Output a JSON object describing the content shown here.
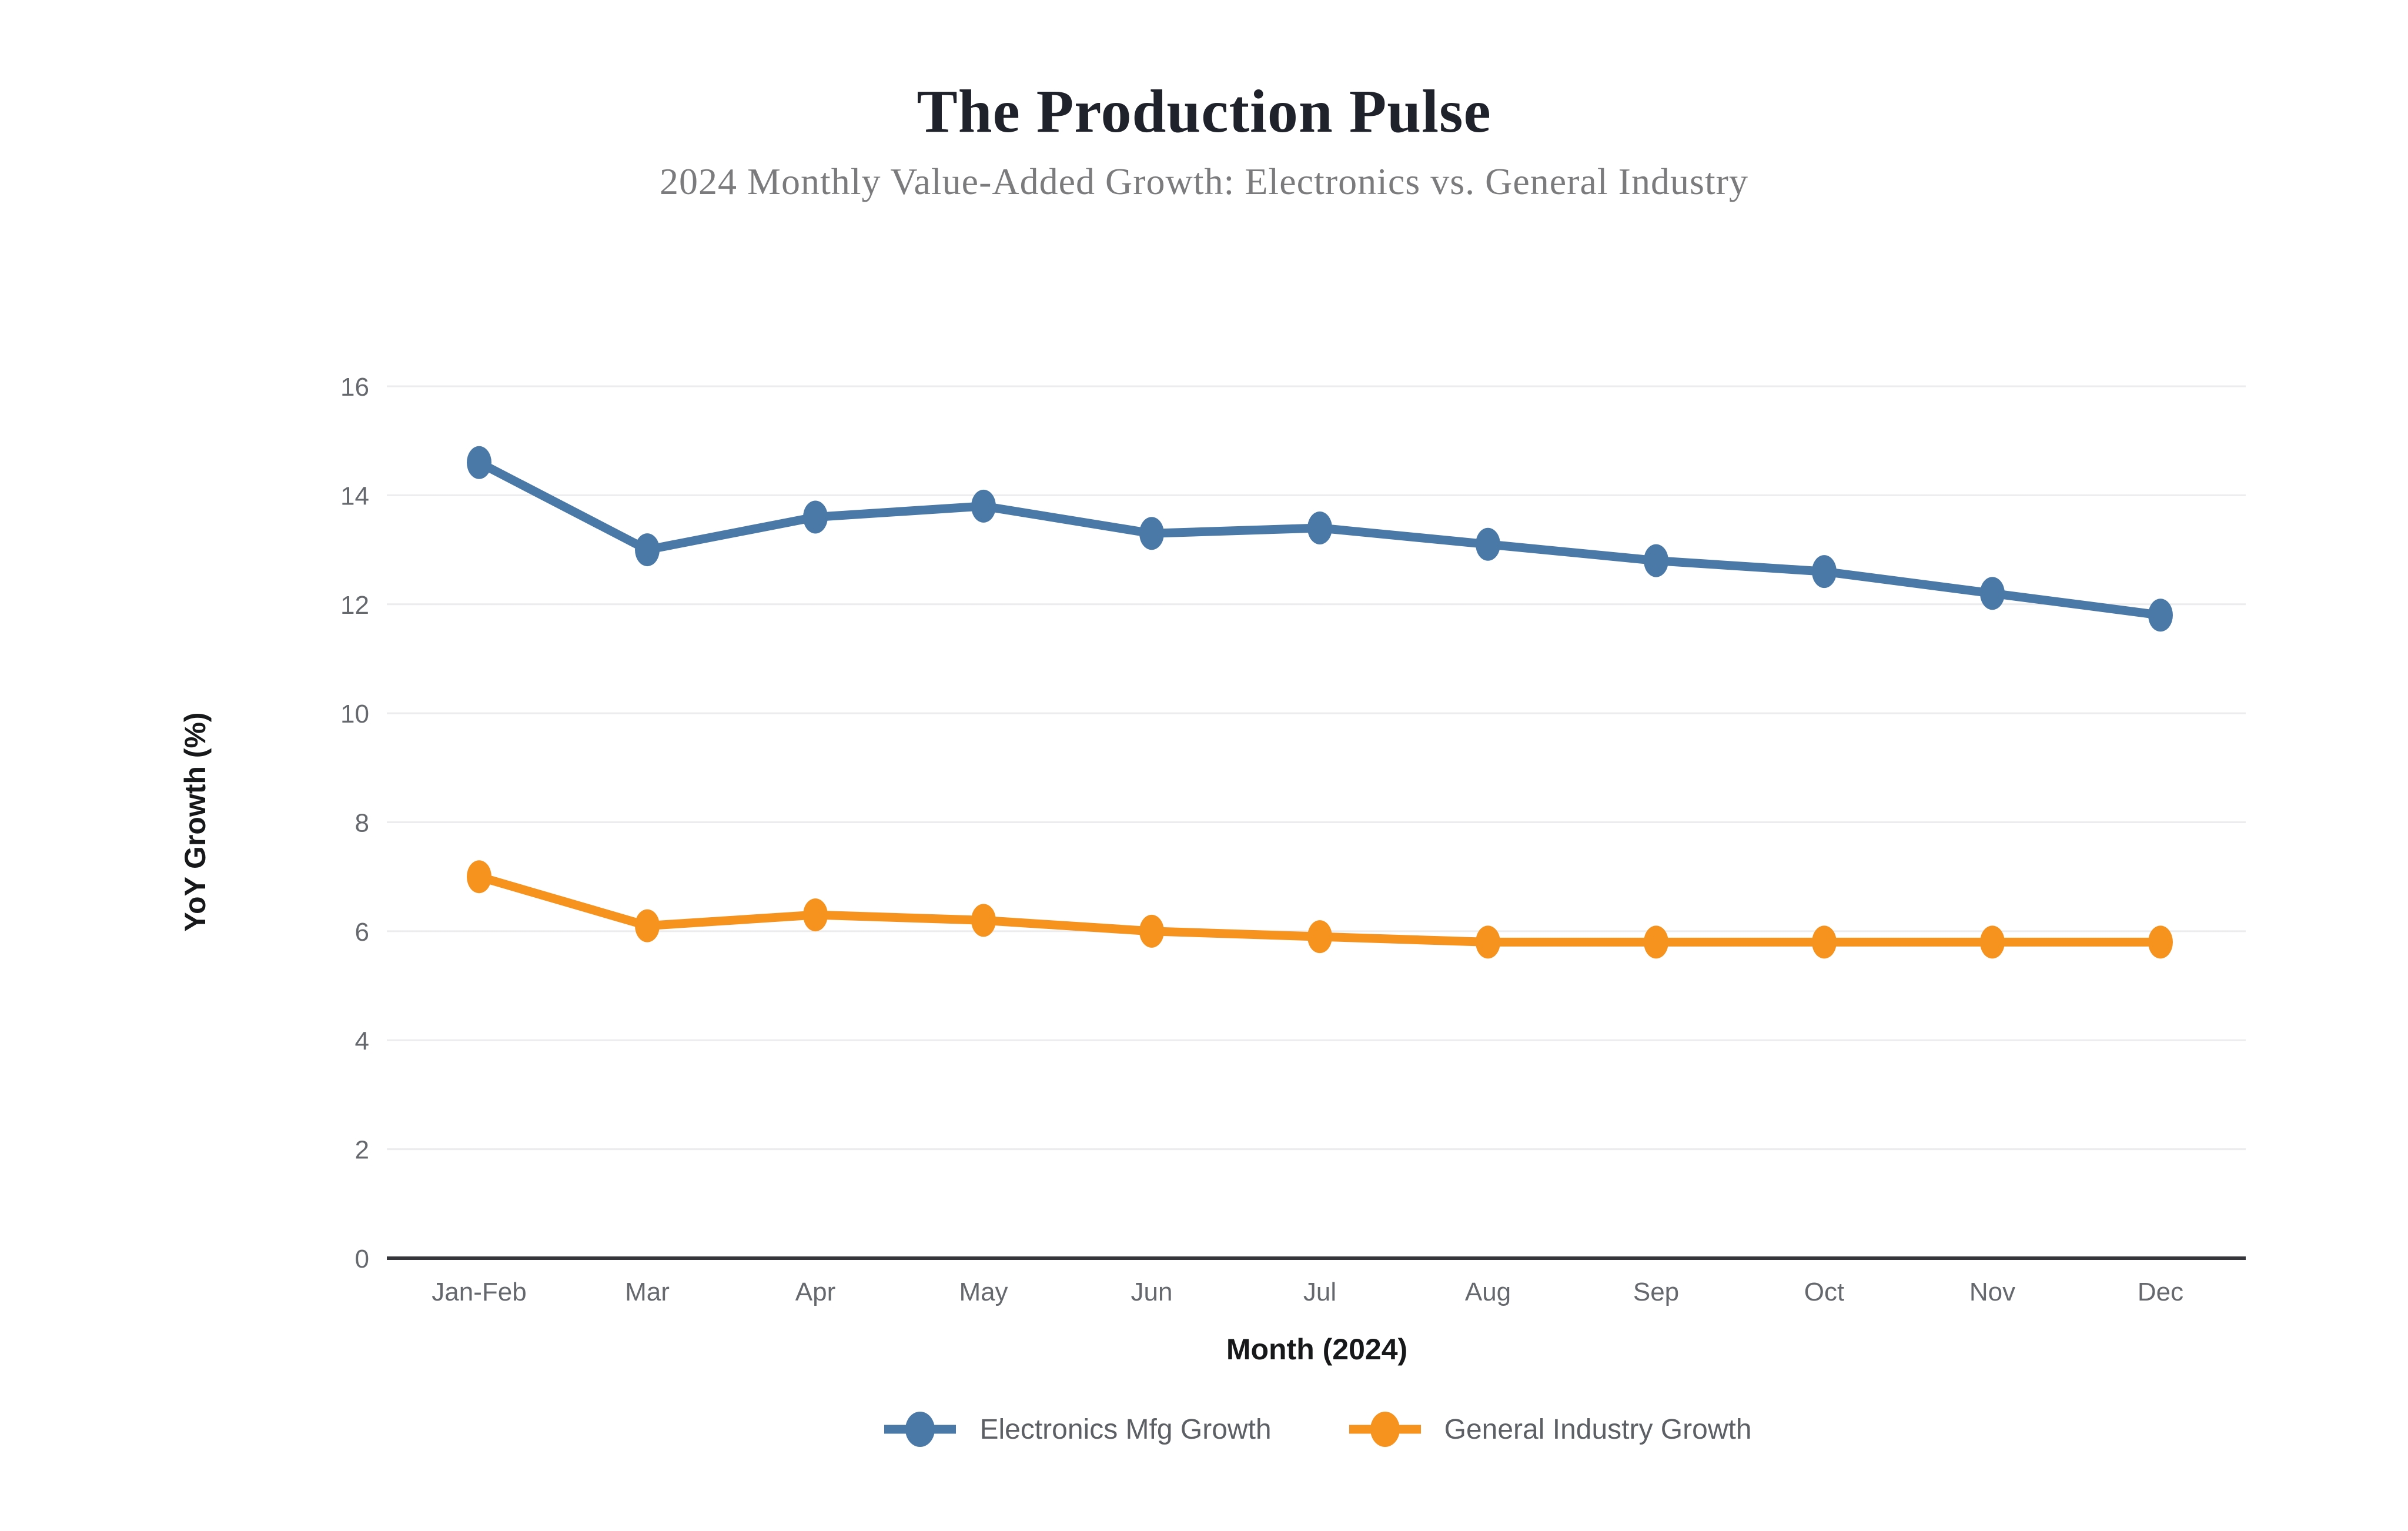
{
  "chart_data": {
    "type": "line",
    "title": "The Production Pulse",
    "subtitle": "2024 Monthly Value-Added Growth: Electronics vs. General Industry",
    "xlabel": "Month (2024)",
    "ylabel": "YoY Growth (%)",
    "categories": [
      "Jan-Feb",
      "Mar",
      "Apr",
      "May",
      "Jun",
      "Jul",
      "Aug",
      "Sep",
      "Oct",
      "Nov",
      "Dec"
    ],
    "series": [
      {
        "name": "Electronics Mfg Growth",
        "color": "#4A79A8",
        "values": [
          14.6,
          13.0,
          13.6,
          13.8,
          13.3,
          13.4,
          13.1,
          12.8,
          12.6,
          12.2,
          11.8
        ]
      },
      {
        "name": "General Industry Growth",
        "color": "#F6921E",
        "values": [
          7.0,
          6.1,
          6.3,
          6.2,
          6.0,
          5.9,
          5.8,
          5.8,
          5.8,
          5.8,
          5.8
        ]
      }
    ],
    "y_axis": {
      "min": 0,
      "max": 16,
      "step": 2
    },
    "grid": true,
    "legend_position": "bottom"
  },
  "style": {
    "grid_color": "#ececee",
    "axis_line_color": "#35363c",
    "tick_label_color": "#65686d",
    "axis_title_color": "#17181a",
    "title_color": "#20222b",
    "subtitle_color": "#7b7b7d",
    "legend_text_color": "#5c5f64",
    "background_color": "#ffffff"
  }
}
